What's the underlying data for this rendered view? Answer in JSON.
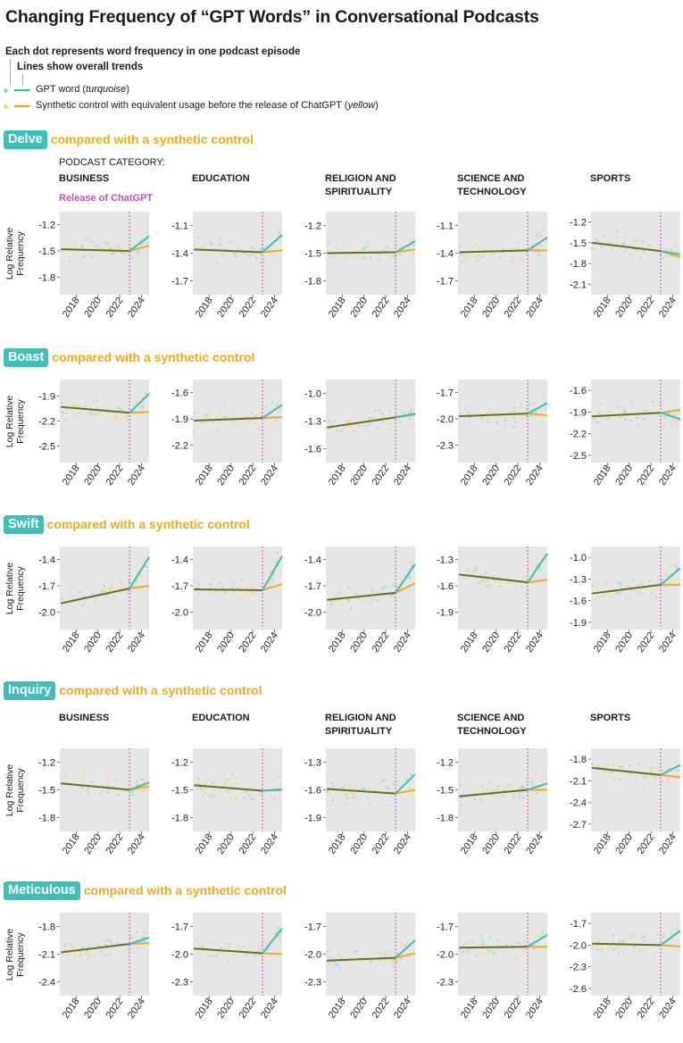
{
  "title": "Changing Frequency of “GPT Words” in Conversational Podcasts",
  "legend": {
    "dots_text": "Each dot represents word frequency in one podcast episode",
    "lines_text": "Lines show overall trends",
    "gpt_text": "GPT word (",
    "gpt_italic": "turquoise",
    "gpt_close": ")",
    "synthetic_text": "Synthetic control with equivalent usage before the release of ChatGPT (",
    "synthetic_italic": "yellow",
    "synthetic_close": ")"
  },
  "podcast_category_label": "PODCAST CATEGORY:",
  "release_label": "Release of ChatGPT",
  "y_axis_label_line1": "Log Relative",
  "y_axis_label_line2": "Frequency",
  "compare_text": "compared with a synthetic control",
  "colors": {
    "gpt": "#3dbdb5",
    "synthetic": "#f2aa1c",
    "overlap": "#6f6b1d",
    "release": "#c14fb9",
    "panel_bg": "#e6e6e6"
  },
  "categories": [
    "BUSINESS",
    "EDUCATION",
    "RELIGION AND SPIRITUALITY",
    "SCIENCE AND TECHNOLOGY",
    "SPORTS"
  ],
  "categories_display": [
    [
      "BUSINESS"
    ],
    [
      "EDUCATION"
    ],
    [
      "RELIGION AND",
      "SPIRITUALITY"
    ],
    [
      "SCIENCE AND",
      "TECHNOLOGY"
    ],
    [
      "SPORTS"
    ]
  ],
  "x_ticks": [
    "2018",
    "2020",
    "2022",
    "2024"
  ],
  "chart_data": {
    "type": "scatter",
    "x_range": [
      2016.5,
      2024.7
    ],
    "release_x": 2022.9,
    "words": [
      {
        "word": "Delve",
        "panels": [
          {
            "category": "BUSINESS",
            "ylim": [
              -2.0,
              -1.05
            ],
            "yticks": [
              "-1.2",
              "-1.5",
              "-1.8"
            ],
            "ytick_values": [
              -1.2,
              -1.5,
              -1.8
            ],
            "trend_start": -1.48,
            "trend_release": -1.5,
            "gpt_end": -1.33,
            "syn_end": -1.44
          },
          {
            "category": "EDUCATION",
            "ylim": [
              -1.85,
              -0.95
            ],
            "yticks": [
              "-1.1",
              "-1.4",
              "-1.7"
            ],
            "ytick_values": [
              -1.1,
              -1.4,
              -1.7
            ],
            "trend_start": -1.36,
            "trend_release": -1.39,
            "gpt_end": -1.2,
            "syn_end": -1.37
          },
          {
            "category": "RELIGION AND SPIRITUALITY",
            "ylim": [
              -1.95,
              -1.05
            ],
            "yticks": [
              "-1.2",
              "-1.5",
              "-1.8"
            ],
            "ytick_values": [
              -1.2,
              -1.5,
              -1.8
            ],
            "trend_start": -1.5,
            "trend_release": -1.49,
            "gpt_end": -1.37,
            "syn_end": -1.46
          },
          {
            "category": "SCIENCE AND TECHNOLOGY",
            "ylim": [
              -1.85,
              -0.95
            ],
            "yticks": [
              "-1.1",
              "-1.4",
              "-1.7"
            ],
            "ytick_values": [
              -1.1,
              -1.4,
              -1.7
            ],
            "trend_start": -1.39,
            "trend_release": -1.37,
            "gpt_end": -1.23,
            "syn_end": -1.37
          },
          {
            "category": "SPORTS",
            "ylim": [
              -2.25,
              -1.05
            ],
            "yticks": [
              "-1.2",
              "-1.5",
              "-1.8",
              "-2.1"
            ],
            "ytick_values": [
              -1.2,
              -1.5,
              -1.8,
              -2.1
            ],
            "trend_start": -1.5,
            "trend_release": -1.62,
            "gpt_end": -1.67,
            "syn_end": -1.71
          }
        ]
      },
      {
        "word": "Boast",
        "panels": [
          {
            "category": "BUSINESS",
            "ylim": [
              -2.7,
              -1.7
            ],
            "yticks": [
              "-1.9",
              "-2.2",
              "-2.5"
            ],
            "ytick_values": [
              -1.9,
              -2.2,
              -2.5
            ],
            "trend_start": -2.03,
            "trend_release": -2.1,
            "gpt_end": -1.87,
            "syn_end": -2.09
          },
          {
            "category": "EDUCATION",
            "ylim": [
              -2.4,
              -1.45
            ],
            "yticks": [
              "-1.6",
              "-1.9",
              "-2.2"
            ],
            "ytick_values": [
              -1.6,
              -1.9,
              -2.2
            ],
            "trend_start": -1.92,
            "trend_release": -1.89,
            "gpt_end": -1.74,
            "syn_end": -1.88
          },
          {
            "category": "RELIGION AND SPIRITUALITY",
            "ylim": [
              -1.75,
              -0.85
            ],
            "yticks": [
              "-1.0",
              "-1.3",
              "-1.6"
            ],
            "ytick_values": [
              -1.0,
              -1.3,
              -1.6
            ],
            "trend_start": -1.37,
            "trend_release": -1.26,
            "gpt_end": -1.22,
            "syn_end": -1.23
          },
          {
            "category": "SCIENCE AND TECHNOLOGY",
            "ylim": [
              -2.5,
              -1.55
            ],
            "yticks": [
              "-1.7",
              "-2.0",
              "-2.3"
            ],
            "ytick_values": [
              -1.7,
              -2.0,
              -2.3
            ],
            "trend_start": -1.97,
            "trend_release": -1.94,
            "gpt_end": -1.82,
            "syn_end": -1.96
          },
          {
            "category": "SPORTS",
            "ylim": [
              -2.6,
              -1.45
            ],
            "yticks": [
              "-1.6",
              "-1.9",
              "-2.2",
              "-2.5"
            ],
            "ytick_values": [
              -1.6,
              -1.9,
              -2.2,
              -2.5
            ],
            "trend_start": -1.96,
            "trend_release": -1.91,
            "gpt_end": -2.0,
            "syn_end": -1.87
          }
        ]
      },
      {
        "word": "Swift",
        "panels": [
          {
            "category": "BUSINESS",
            "ylim": [
              -2.2,
              -1.25
            ],
            "yticks": [
              "-1.4",
              "-1.7",
              "-2.0"
            ],
            "ytick_values": [
              -1.4,
              -1.7,
              -2.0
            ],
            "trend_start": -1.9,
            "trend_release": -1.73,
            "gpt_end": -1.37,
            "syn_end": -1.7
          },
          {
            "category": "EDUCATION",
            "ylim": [
              -2.2,
              -1.25
            ],
            "yticks": [
              "-1.4",
              "-1.7",
              "-2.0"
            ],
            "ytick_values": [
              -1.4,
              -1.7,
              -2.0
            ],
            "trend_start": -1.74,
            "trend_release": -1.75,
            "gpt_end": -1.36,
            "syn_end": -1.68
          },
          {
            "category": "RELIGION AND SPIRITUALITY",
            "ylim": [
              -2.2,
              -1.25
            ],
            "yticks": [
              "-1.4",
              "-1.7",
              "-2.0"
            ],
            "ytick_values": [
              -1.4,
              -1.7,
              -2.0
            ],
            "trend_start": -1.86,
            "trend_release": -1.78,
            "gpt_end": -1.45,
            "syn_end": -1.67
          },
          {
            "category": "SCIENCE AND TECHNOLOGY",
            "ylim": [
              -2.1,
              -1.15
            ],
            "yticks": [
              "-1.3",
              "-1.6",
              "-1.9"
            ],
            "ytick_values": [
              -1.3,
              -1.6,
              -1.9
            ],
            "trend_start": -1.47,
            "trend_release": -1.56,
            "gpt_end": -1.23,
            "syn_end": -1.53
          },
          {
            "category": "SPORTS",
            "ylim": [
              -2.0,
              -0.85
            ],
            "yticks": [
              "-1.0",
              "-1.3",
              "-1.6",
              "-1.9"
            ],
            "ytick_values": [
              -1.0,
              -1.3,
              -1.6,
              -1.9
            ],
            "trend_start": -1.5,
            "trend_release": -1.38,
            "gpt_end": -1.15,
            "syn_end": -1.38
          }
        ]
      },
      {
        "word": "Inquiry",
        "panels": [
          {
            "category": "BUSINESS",
            "ylim": [
              -1.95,
              -1.05
            ],
            "yticks": [
              "-1.2",
              "-1.5",
              "-1.8"
            ],
            "ytick_values": [
              -1.2,
              -1.5,
              -1.8
            ],
            "trend_start": -1.43,
            "trend_release": -1.5,
            "gpt_end": -1.42,
            "syn_end": -1.46
          },
          {
            "category": "EDUCATION",
            "ylim": [
              -1.95,
              -1.05
            ],
            "yticks": [
              "-1.2",
              "-1.5",
              "-1.8"
            ],
            "ytick_values": [
              -1.2,
              -1.5,
              -1.8
            ],
            "trend_start": -1.45,
            "trend_release": -1.51,
            "gpt_end": -1.5,
            "syn_end": -1.49
          },
          {
            "category": "RELIGION AND SPIRITUALITY",
            "ylim": [
              -2.05,
              -1.15
            ],
            "yticks": [
              "-1.3",
              "-1.6",
              "-1.9"
            ],
            "ytick_values": [
              -1.3,
              -1.6,
              -1.9
            ],
            "trend_start": -1.59,
            "trend_release": -1.64,
            "gpt_end": -1.43,
            "syn_end": -1.6
          },
          {
            "category": "SCIENCE AND TECHNOLOGY",
            "ylim": [
              -1.95,
              -1.05
            ],
            "yticks": [
              "-1.2",
              "-1.5",
              "-1.8"
            ],
            "ytick_values": [
              -1.2,
              -1.5,
              -1.8
            ],
            "trend_start": -1.57,
            "trend_release": -1.5,
            "gpt_end": -1.43,
            "syn_end": -1.5
          },
          {
            "category": "SPORTS",
            "ylim": [
              -2.8,
              -1.65
            ],
            "yticks": [
              "-1.8",
              "-2.1",
              "-2.4",
              "-2.7"
            ],
            "ytick_values": [
              -1.8,
              -2.1,
              -2.4,
              -2.7
            ],
            "trend_start": -1.92,
            "trend_release": -2.02,
            "gpt_end": -1.88,
            "syn_end": -2.05
          }
        ]
      },
      {
        "word": "Meticulous",
        "panels": [
          {
            "category": "BUSINESS",
            "ylim": [
              -2.55,
              -1.65
            ],
            "yticks": [
              "-1.8",
              "-2.1",
              "-2.4"
            ],
            "ytick_values": [
              -1.8,
              -2.1,
              -2.4
            ],
            "trend_start": -2.08,
            "trend_release": -1.99,
            "gpt_end": -1.92,
            "syn_end": -1.98
          },
          {
            "category": "EDUCATION",
            "ylim": [
              -2.45,
              -1.55
            ],
            "yticks": [
              "-1.7",
              "-2.0",
              "-2.3"
            ],
            "ytick_values": [
              -1.7,
              -2.0,
              -2.3
            ],
            "trend_start": -1.94,
            "trend_release": -1.99,
            "gpt_end": -1.72,
            "syn_end": -2.0
          },
          {
            "category": "RELIGION AND SPIRITUALITY",
            "ylim": [
              -2.45,
              -1.55
            ],
            "yticks": [
              "-1.7",
              "-2.0",
              "-2.3"
            ],
            "ytick_values": [
              -1.7,
              -2.0,
              -2.3
            ],
            "trend_start": -2.07,
            "trend_release": -2.04,
            "gpt_end": -1.85,
            "syn_end": -1.99
          },
          {
            "category": "SCIENCE AND TECHNOLOGY",
            "ylim": [
              -2.45,
              -1.55
            ],
            "yticks": [
              "-1.7",
              "-2.0",
              "-2.3"
            ],
            "ytick_values": [
              -1.7,
              -2.0,
              -2.3
            ],
            "trend_start": -1.93,
            "trend_release": -1.92,
            "gpt_end": -1.79,
            "syn_end": -1.92
          },
          {
            "category": "SPORTS",
            "ylim": [
              -2.7,
              -1.55
            ],
            "yticks": [
              "-1.7",
              "-2.0",
              "-2.3",
              "-2.6"
            ],
            "ytick_values": [
              -1.7,
              -2.0,
              -2.3,
              -2.6
            ],
            "trend_start": -1.98,
            "trend_release": -2.0,
            "gpt_end": -1.8,
            "syn_end": -2.02
          }
        ]
      }
    ]
  }
}
